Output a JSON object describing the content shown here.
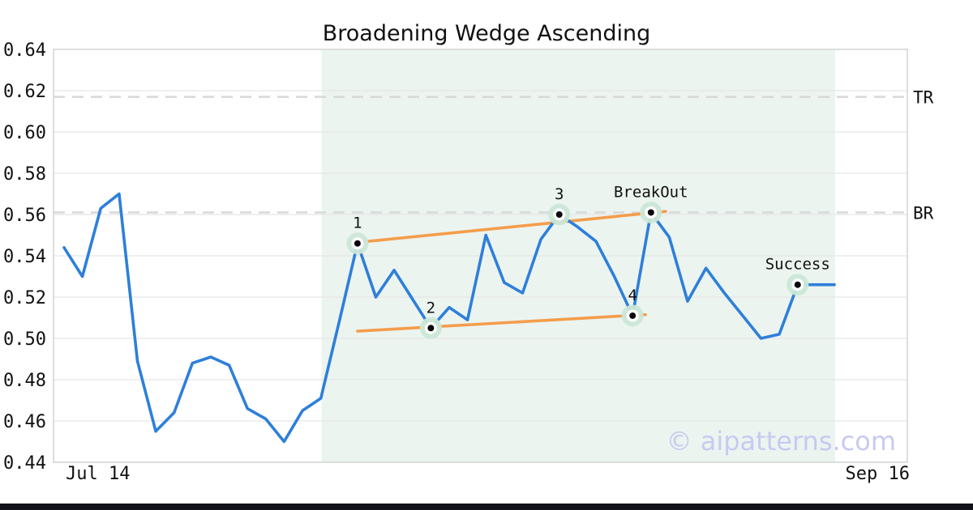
{
  "chart_data": {
    "type": "line",
    "title": "Broadening Wedge Ascending",
    "watermark": "© aipatterns.com",
    "x_axis": {
      "left_label": "Jul 14",
      "right_label": "Sep 16"
    },
    "y_axis": {
      "min": 0.44,
      "max": 0.64,
      "tick_step": 0.02,
      "tick_labels": [
        "0.44",
        "0.46",
        "0.48",
        "0.50",
        "0.52",
        "0.54",
        "0.56",
        "0.58",
        "0.60",
        "0.62",
        "0.64"
      ]
    },
    "levels": [
      {
        "label": "TR",
        "value": 0.617
      },
      {
        "label": "BR",
        "value": 0.561
      }
    ],
    "series": [
      {
        "name": "price",
        "values": [
          0.544,
          0.53,
          0.563,
          0.57,
          0.489,
          0.455,
          0.464,
          0.488,
          0.491,
          0.487,
          0.466,
          0.461,
          0.45,
          0.465,
          0.471,
          0.508,
          0.546,
          0.52,
          0.533,
          0.519,
          0.505,
          0.515,
          0.509,
          0.55,
          0.527,
          0.522,
          0.548,
          0.56,
          0.554,
          0.547,
          0.53,
          0.511,
          0.561,
          0.549,
          0.518,
          0.534,
          0.522,
          0.511,
          0.5,
          0.502,
          0.526,
          0.526,
          0.526
        ]
      }
    ],
    "pattern_zone": {
      "start_index": 14,
      "end_index": 42
    },
    "trendlines": [
      {
        "name": "upper",
        "from_index": 16,
        "from_value": 0.5465,
        "to_index": 32.8,
        "to_value": 0.5615
      },
      {
        "name": "lower",
        "from_index": 16,
        "from_value": 0.5035,
        "to_index": 31.7,
        "to_value": 0.5115
      }
    ],
    "markers": [
      {
        "index": 16,
        "label": "1",
        "value": 0.546
      },
      {
        "index": 20,
        "label": "2",
        "value": 0.505
      },
      {
        "index": 27,
        "label": "3",
        "value": 0.56
      },
      {
        "index": 31,
        "label": "4",
        "value": 0.511
      },
      {
        "index": 32,
        "label": "BreakOut",
        "value": 0.561
      },
      {
        "index": 40,
        "label": "Success",
        "value": 0.526
      }
    ],
    "colors": {
      "price_line": "#2E7FD9",
      "trendline": "#F49D4B",
      "pattern_zone": "#ECF4F0",
      "level_dash": "#D9D9D9",
      "grid": "#E5E5E5",
      "plot_border": "#D4D4D4",
      "marker_halo": "#CBE7D6",
      "marker_dot": "#0A0A0A",
      "text": "#111111",
      "watermark": "#C9C9F1",
      "footer": "#12121A"
    }
  }
}
